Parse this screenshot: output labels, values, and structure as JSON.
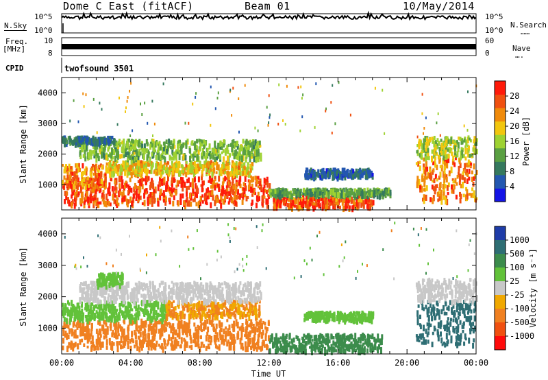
{
  "header": {
    "station": "Dome C East (fitACF)",
    "beam": "Beam 01",
    "date": "10/May/2014"
  },
  "side_labels": {
    "nsky": "N.Sky",
    "freq_line1": "Freq.",
    "freq_line2": "[MHz]",
    "cpid": "CPID",
    "nsearch": "N.Search",
    "nsearch_dots": "……",
    "nave": "Nave",
    "nave_dots": "…."
  },
  "cpid_name": "twofsound 3501",
  "chart_data": [
    {
      "type": "line",
      "name": "noise",
      "left_ticks": [
        "10^5",
        "10^0"
      ],
      "right_ticks": [
        "10^5",
        "10^0"
      ],
      "x_range": [
        0,
        24
      ],
      "level": 0.8
    },
    {
      "type": "line",
      "name": "frequency-nave",
      "left_ticks": [
        "10",
        "8"
      ],
      "right_ticks": [
        "60",
        "0"
      ],
      "x_range": [
        0,
        24
      ],
      "level": 0.5
    },
    {
      "type": "heatmap",
      "name": "power",
      "ylabel": "Slant Range [km]",
      "x_range": [
        0,
        24
      ],
      "ylim": [
        180,
        4500
      ],
      "y_ticks": [
        1000,
        2000,
        3000,
        4000
      ],
      "colorbar": {
        "label": "Power [dB]",
        "range": [
          0,
          32
        ],
        "ticks": [
          "4",
          "8",
          "12",
          "16",
          "20",
          "24",
          "28"
        ],
        "colors": [
          "#1414e6",
          "#2357b0",
          "#35795e",
          "#5aa042",
          "#9ed232",
          "#f2c60e",
          "#f08a0a",
          "#f05010",
          "#ff1a0a"
        ]
      },
      "patches": [
        {
          "t": [
            0.0,
            12.0
          ],
          "r": [
            300,
            1200
          ],
          "v": 28
        },
        {
          "t": [
            0.0,
            2.5
          ],
          "r": [
            900,
            1600
          ],
          "v": 24
        },
        {
          "t": [
            2.5,
            11.0
          ],
          "r": [
            1300,
            1700
          ],
          "v": 20
        },
        {
          "t": [
            1.0,
            11.5
          ],
          "r": [
            1800,
            2400
          ],
          "v": 14
        },
        {
          "t": [
            0.0,
            3.0
          ],
          "r": [
            2300,
            2500
          ],
          "v": 8
        },
        {
          "t": [
            12.2,
            18.0
          ],
          "r": [
            200,
            600
          ],
          "v": 27
        },
        {
          "t": [
            12.0,
            19.0
          ],
          "r": [
            600,
            800
          ],
          "v": 12
        },
        {
          "t": [
            14.0,
            18.0
          ],
          "r": [
            1200,
            1450
          ],
          "v": 6
        },
        {
          "t": [
            20.5,
            24.0
          ],
          "r": [
            400,
            1800
          ],
          "v": 24
        },
        {
          "t": [
            20.5,
            24.0
          ],
          "r": [
            1800,
            2500
          ],
          "v": 16
        }
      ]
    },
    {
      "type": "heatmap",
      "name": "velocity",
      "ylabel": "Slant Range [km]",
      "xlabel": "Time UT",
      "x_range": [
        0,
        24
      ],
      "x_ticks": [
        "00:00",
        "04:00",
        "08:00",
        "12:00",
        "16:00",
        "20:00",
        "00:00"
      ],
      "ylim": [
        180,
        4500
      ],
      "y_ticks": [
        1000,
        2000,
        3000,
        4000
      ],
      "colorbar": {
        "label": "Velocity [m s⁻¹]",
        "ticks": [
          "1000",
          "500",
          "100",
          "25",
          "-25",
          "-100",
          "-500",
          "-1000"
        ],
        "colors": [
          "#1e3ca8",
          "#2e6e74",
          "#3c8c4c",
          "#62c23a",
          "#c8c8c8",
          "#f0a800",
          "#f08020",
          "#f05010",
          "#ff0a0a"
        ]
      },
      "patches": [
        {
          "t": [
            0.0,
            12.0
          ],
          "r": [
            300,
            1200
          ],
          "v": -200
        },
        {
          "t": [
            0.0,
            6.0
          ],
          "r": [
            1200,
            1800
          ],
          "v": 0
        },
        {
          "t": [
            6.0,
            11.5
          ],
          "r": [
            1300,
            1800
          ],
          "v": -150
        },
        {
          "t": [
            1.0,
            11.5
          ],
          "r": [
            1800,
            2400
          ],
          "v": -80
        },
        {
          "t": [
            2.0,
            3.5
          ],
          "r": [
            2300,
            2700
          ],
          "v": 0
        },
        {
          "t": [
            12.0,
            18.5
          ],
          "r": [
            200,
            750
          ],
          "v": 80
        },
        {
          "t": [
            14.0,
            18.0
          ],
          "r": [
            1200,
            1450
          ],
          "v": 0
        },
        {
          "t": [
            20.5,
            24.0
          ],
          "r": [
            400,
            1800
          ],
          "v": 300
        },
        {
          "t": [
            20.5,
            24.0
          ],
          "r": [
            1800,
            2500
          ],
          "v": -60
        }
      ]
    }
  ]
}
